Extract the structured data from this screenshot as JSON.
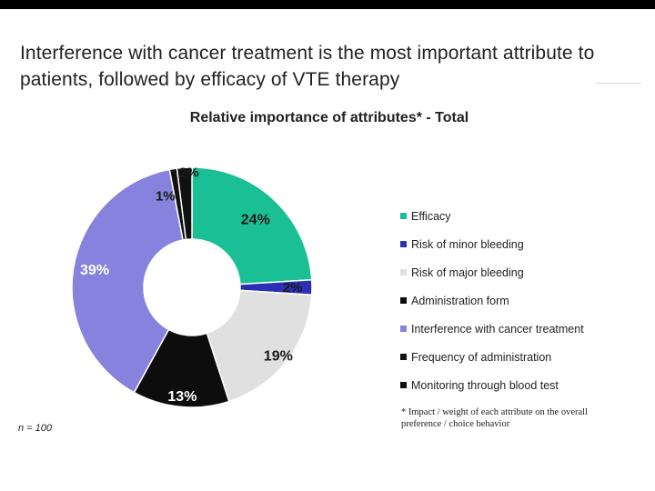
{
  "slide": {
    "headline": "Interference with cancer treatment is the most important attribute to patients, followed by efficacy of VTE therapy",
    "sample_size": "n = 100",
    "footnote": "* Impact / weight of each attribute on the overall preference / choice behavior"
  },
  "chart_data": {
    "type": "pie",
    "title": "Relative importance of attributes* - Total",
    "legend_position": "right",
    "categories": [
      "Efficacy",
      "Risk of minor bleeding",
      "Risk of major bleeding",
      "Administration form",
      "Interference with cancer treatment",
      "Frequency of administration",
      "Monitoring through blood test"
    ],
    "values": [
      24,
      2,
      19,
      13,
      39,
      1,
      2
    ],
    "labels": [
      "24%",
      "2%",
      "19%",
      "13%",
      "39%",
      "1%",
      "2%"
    ],
    "colors": [
      "#1bbf95",
      "#2a2fb3",
      "#e0e0e0",
      "#0d0d0d",
      "#8682dd",
      "#111111",
      "#111111"
    ]
  }
}
